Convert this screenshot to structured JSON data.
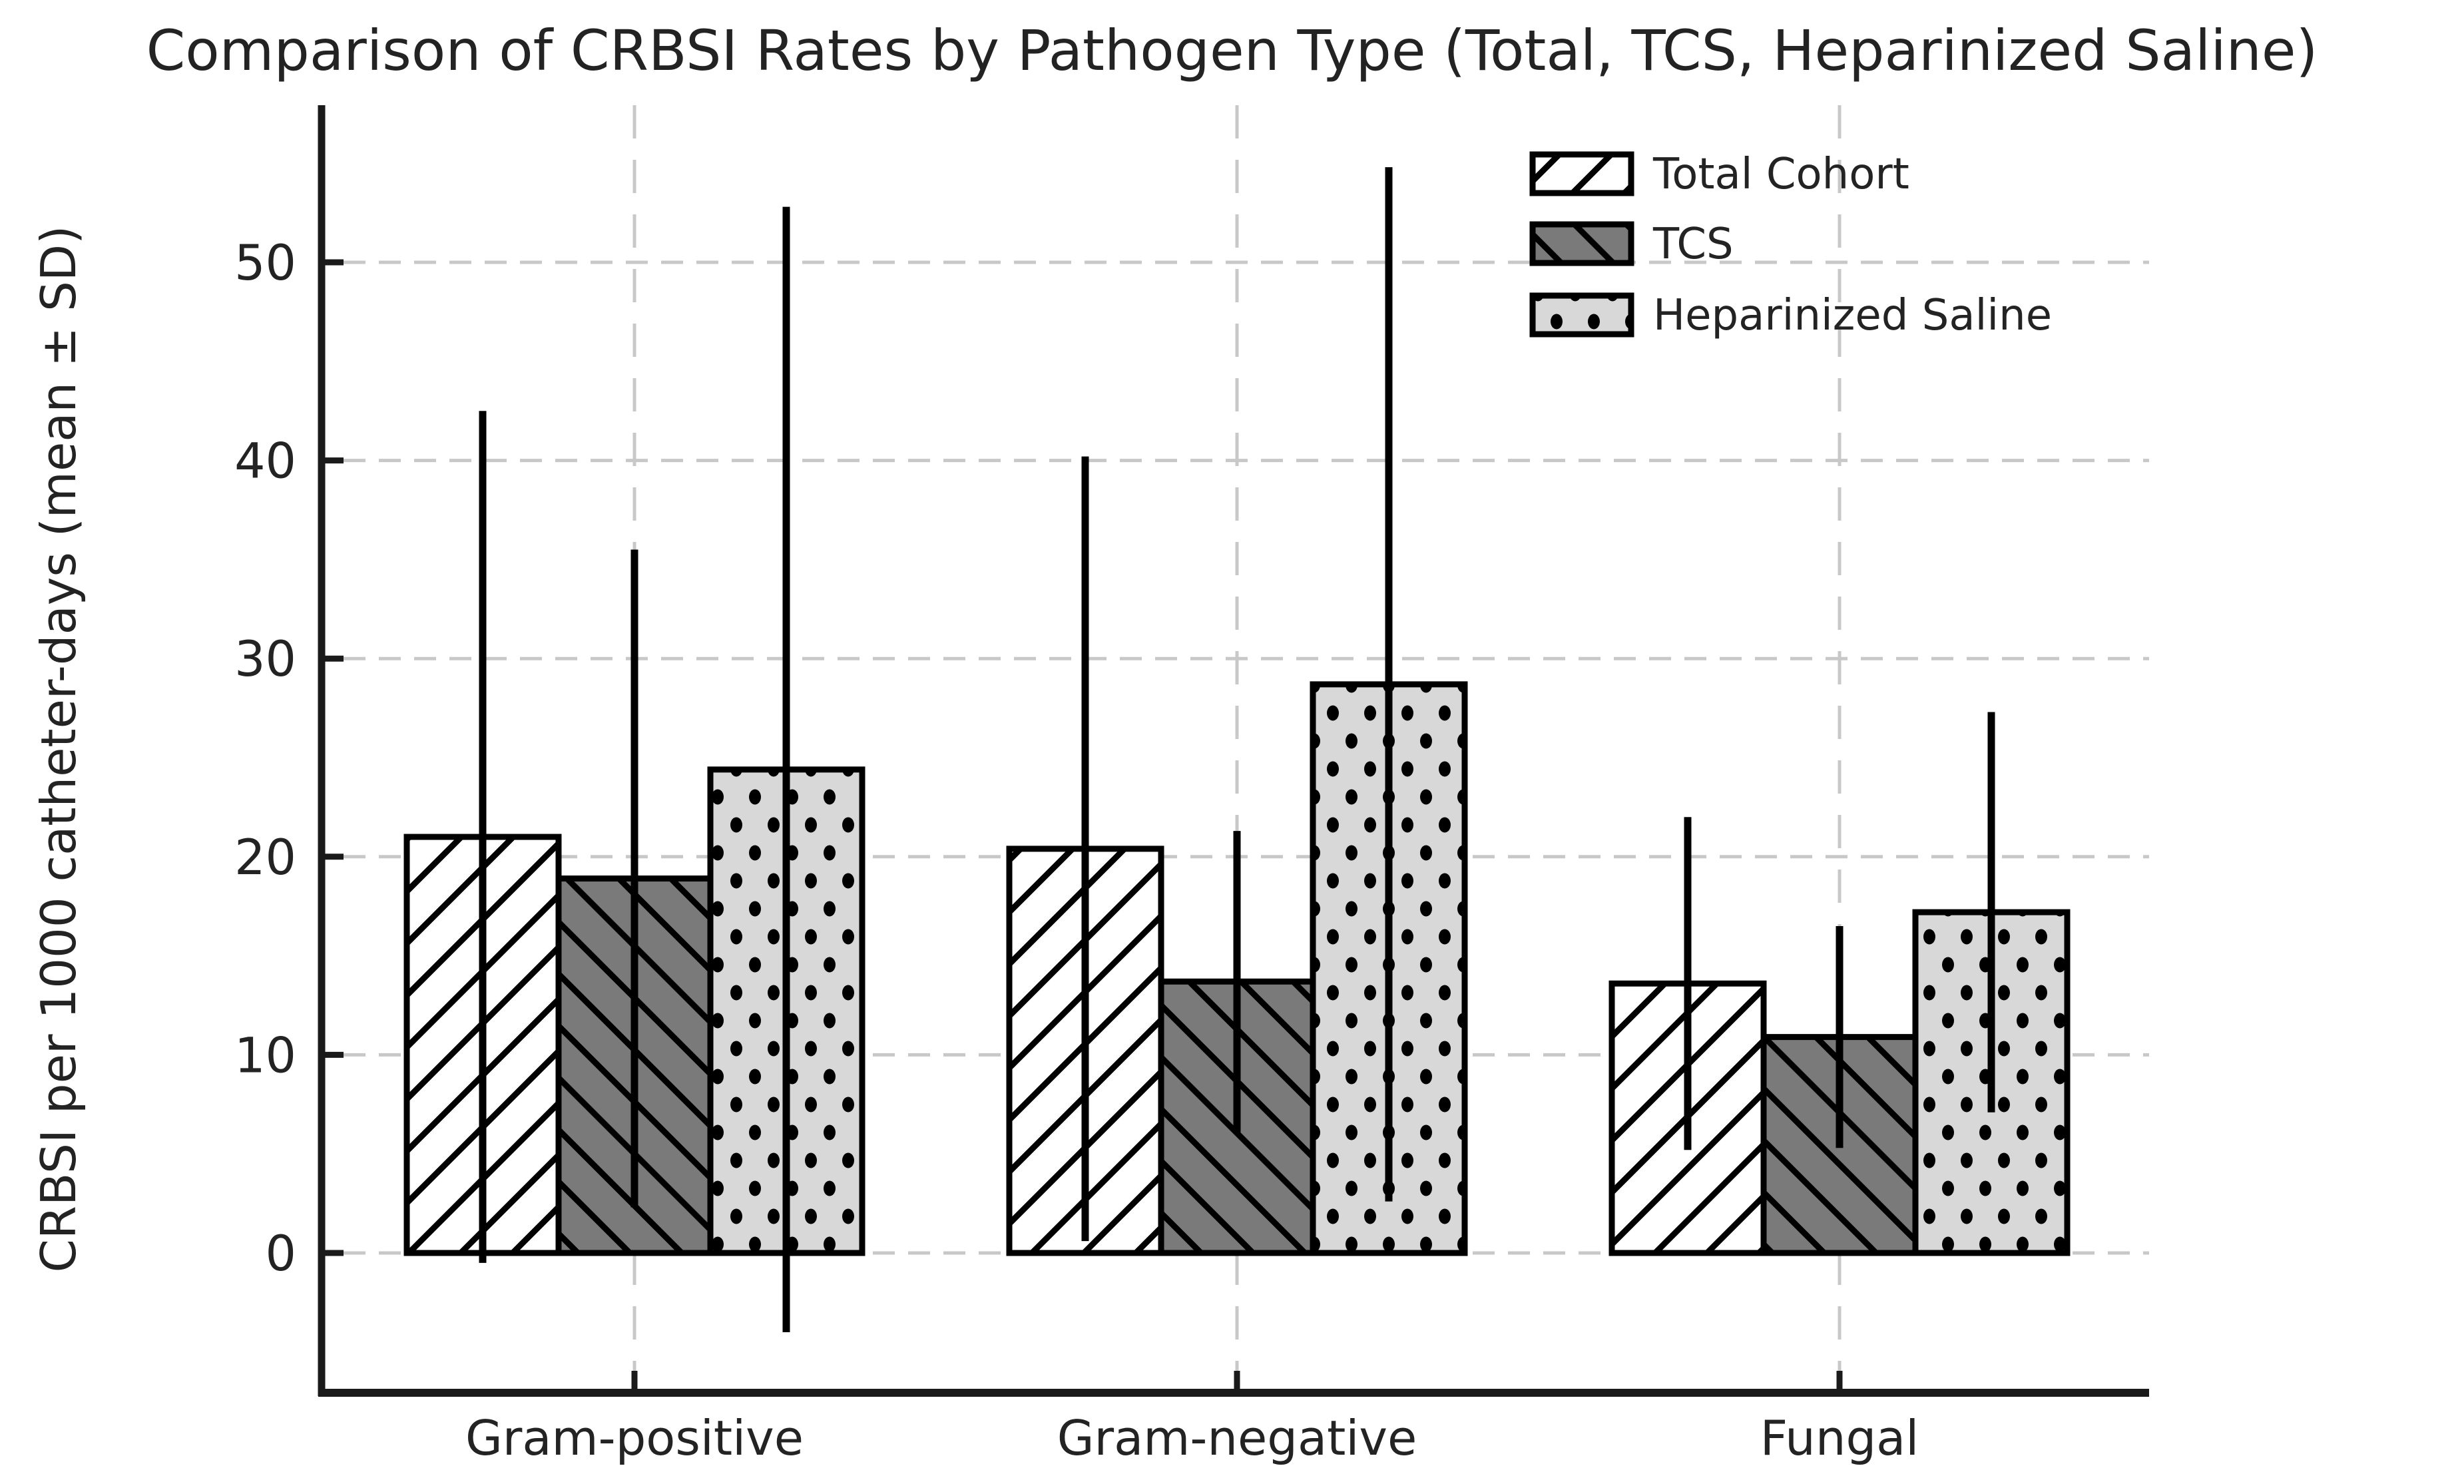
{
  "chart_data": {
    "type": "bar",
    "title": "Comparison of CRBSI Rates by Pathogen Type (Total, TCS, Heparinized Saline)",
    "xlabel": "",
    "ylabel": "CRBSI per 1000 catheter-days (mean ± SD)",
    "categories": [
      "Gram-positive",
      "Gram-negative",
      "Fungal"
    ],
    "yticks": [
      0,
      10,
      20,
      30,
      40,
      50
    ],
    "ytick_labels": [
      "0",
      "10",
      "20",
      "30",
      "40",
      "50"
    ],
    "ylim": [
      -7.1,
      57.9
    ],
    "grid": true,
    "grid_style": "dashed",
    "legend_position": "upper right",
    "error_bars": "mean ± SD, no caps",
    "series": [
      {
        "name": "Total Cohort",
        "hatch": "diagonal-forward",
        "fill": "#ffffff",
        "means": [
          21.0,
          20.4,
          13.6
        ],
        "sds": [
          21.5,
          19.8,
          8.4
        ]
      },
      {
        "name": "TCS",
        "hatch": "diagonal-back",
        "fill": "#7a7a7a",
        "means": [
          18.9,
          13.7,
          10.9
        ],
        "sds": [
          16.6,
          7.6,
          5.6
        ]
      },
      {
        "name": "Heparinized Saline",
        "hatch": "dots",
        "fill": "#d8d8d8",
        "means": [
          24.4,
          28.7,
          17.2
        ],
        "sds": [
          28.4,
          26.1,
          10.1
        ]
      }
    ],
    "colors": {
      "bar_edge": "#000000",
      "error_bar": "#000000",
      "hatch": "#000000",
      "grid": "#c8c8c8",
      "spine": "#1a1a1a",
      "text": "#232323",
      "background": "#ffffff"
    }
  }
}
